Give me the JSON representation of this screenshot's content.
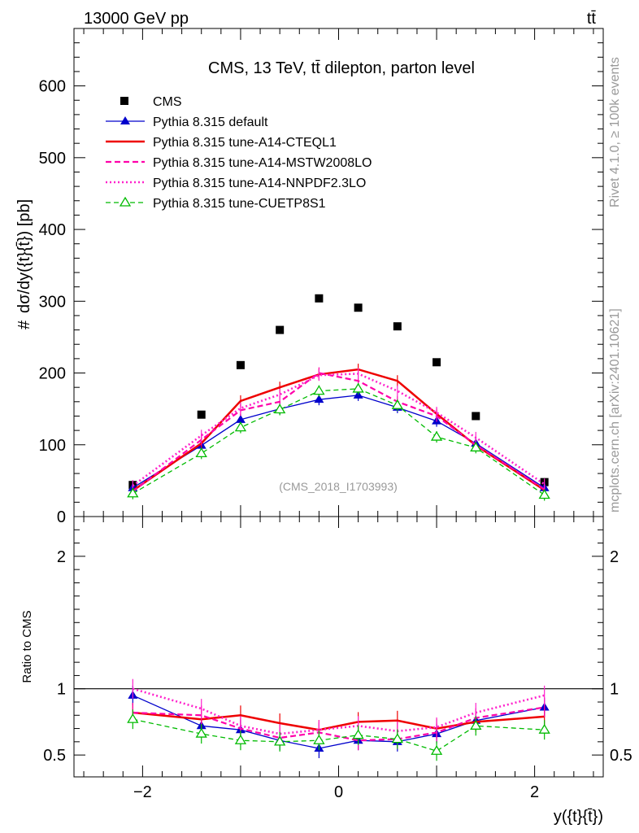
{
  "header": {
    "energy_label": "13000 GeV pp",
    "process_label": "tt̄"
  },
  "side_labels": {
    "rivet": "Rivet 4.1.0, ≥ 100k events",
    "mcplots": "mcplots.cern.ch [arXiv:2401.10621]"
  },
  "colors": {
    "cms": "#000000",
    "default": "#0000cc",
    "cteql1": "#ee0000",
    "mstw": "#ff00aa",
    "nnpdf": "#ff22cc",
    "cuetp8s1": "#00bb00",
    "watermark": "#999999"
  },
  "chart_data": [
    {
      "type": "line",
      "panel": "main",
      "title": "CMS, 13 TeV, tt̄ dilepton, parton level",
      "watermark": "(CMS_2018_I1703993)",
      "ylabel_main": "dσ/dy({t}{t̄}) [pb]",
      "ylabel_hash": "#",
      "xlim": [
        -2.7,
        2.7
      ],
      "ylim": [
        0,
        680
      ],
      "yticks": [
        0,
        100,
        200,
        300,
        400,
        500,
        600
      ],
      "ytick_labels": [
        "0",
        "100",
        "200",
        "300",
        "400",
        "500",
        "600"
      ],
      "x": [
        -2.1,
        -1.4,
        -1.0,
        -0.6,
        -0.2,
        0.2,
        0.6,
        1.0,
        1.4,
        2.1
      ],
      "series": [
        {
          "key": "cms",
          "name": "CMS",
          "style": "square",
          "values": [
            44,
            142,
            211,
            260,
            304,
            291,
            265,
            215,
            140,
            48
          ]
        },
        {
          "key": "default",
          "name": "Pythia 8.315 default",
          "style": "solid-triangle",
          "values": [
            40,
            99,
            135,
            150,
            163,
            169,
            152,
            133,
            102,
            40
          ]
        },
        {
          "key": "cteql1",
          "name": "Pythia 8.315 tune-A14-CTEQL1",
          "style": "thick-solid",
          "values": [
            36,
            102,
            161,
            180,
            198,
            205,
            189,
            143,
            99,
            37
          ]
        },
        {
          "key": "mstw",
          "name": "Pythia 8.315 tune-A14-MSTW2008LO",
          "style": "dashed",
          "values": [
            35,
            107,
            148,
            160,
            200,
            189,
            160,
            140,
            100,
            38
          ]
        },
        {
          "key": "nnpdf",
          "name": "Pythia 8.315 tune-A14-NNPDF2.3LO",
          "style": "dotted",
          "values": [
            43,
            113,
            151,
            170,
            197,
            199,
            175,
            145,
            110,
            45
          ]
        },
        {
          "key": "cuetp8s1",
          "name": "Pythia 8.315 tune-CUETP8S1",
          "style": "dashed-open-triangle",
          "values": [
            32,
            88,
            124,
            149,
            175,
            178,
            155,
            111,
            96,
            30
          ]
        }
      ]
    },
    {
      "type": "line",
      "panel": "ratio",
      "ylabel": "Ratio to CMS",
      "xlabel": "y({t}{t̄})",
      "xlim": [
        -2.7,
        2.7
      ],
      "xticks": [
        -2,
        0,
        2
      ],
      "xtick_labels": [
        "−2",
        "0",
        "2"
      ],
      "ylim": [
        0.335,
        2.3
      ],
      "yticks": [
        0.5,
        1,
        2
      ],
      "ytick_labels": [
        "0.5",
        "1",
        "2"
      ],
      "reference_line": 1,
      "x": [
        -2.1,
        -1.4,
        -1.0,
        -0.6,
        -0.2,
        0.2,
        0.6,
        1.0,
        1.4,
        2.1
      ],
      "series": [
        {
          "key": "default",
          "values": [
            0.95,
            0.72,
            0.69,
            0.61,
            0.55,
            0.61,
            0.6,
            0.66,
            0.76,
            0.86
          ]
        },
        {
          "key": "cteql1",
          "values": [
            0.82,
            0.77,
            0.8,
            0.74,
            0.69,
            0.75,
            0.76,
            0.7,
            0.75,
            0.79
          ]
        },
        {
          "key": "mstw",
          "values": [
            0.82,
            0.8,
            0.7,
            0.63,
            0.67,
            0.61,
            0.62,
            0.67,
            0.78,
            0.86
          ]
        },
        {
          "key": "nnpdf",
          "values": [
            1.0,
            0.85,
            0.72,
            0.66,
            0.69,
            0.72,
            0.68,
            0.71,
            0.82,
            0.95
          ]
        },
        {
          "key": "cuetp8s1",
          "values": [
            0.77,
            0.66,
            0.61,
            0.6,
            0.61,
            0.65,
            0.62,
            0.53,
            0.72,
            0.69
          ]
        }
      ]
    }
  ]
}
